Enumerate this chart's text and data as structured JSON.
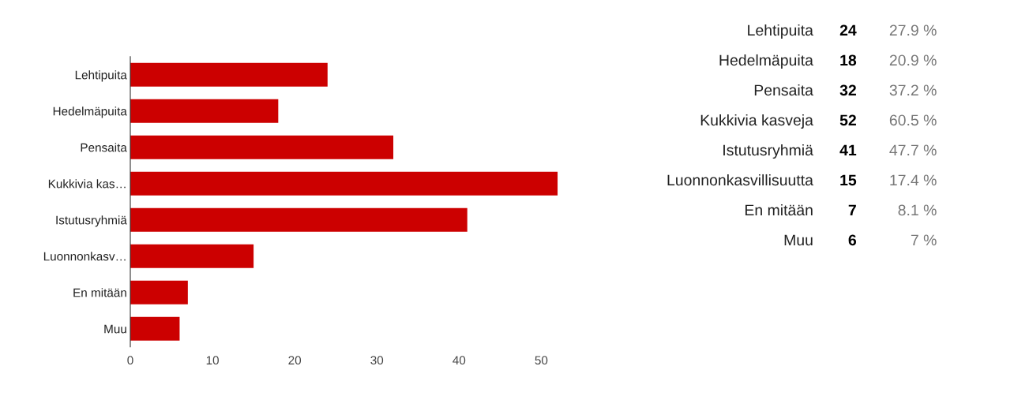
{
  "chart_data": [
    {
      "type": "bar",
      "orientation": "horizontal",
      "categories": [
        "Lehtipuita",
        "Hedelmäpuita",
        "Pensaita",
        "Kukkivia kas…",
        "Istutusryhmiä",
        "Luonnonkasv…",
        "En mitään",
        "Muu"
      ],
      "values": [
        24,
        18,
        32,
        52,
        41,
        15,
        7,
        6
      ],
      "color": "#cc0000",
      "xlim": [
        0,
        52
      ],
      "xticks": [
        0,
        10,
        20,
        30,
        40,
        50
      ],
      "grid": false
    },
    {
      "type": "other",
      "categories": [
        "Lehtipuita",
        "Hedelmäpuita",
        "Pensaita",
        "Kukkivia kasveja",
        "Istutusryhmiä",
        "Luonnonkasvillisuutta",
        "En mitään",
        "Muu"
      ],
      "values": [
        24,
        18,
        32,
        52,
        41,
        15,
        7,
        6
      ],
      "data_labels": true,
      "annotations": [
        "27.9 %",
        "20.9 %",
        "37.2 %",
        "60.5 %",
        "47.7 %",
        "17.4 %",
        "8.1 %",
        "7 %"
      ]
    }
  ]
}
